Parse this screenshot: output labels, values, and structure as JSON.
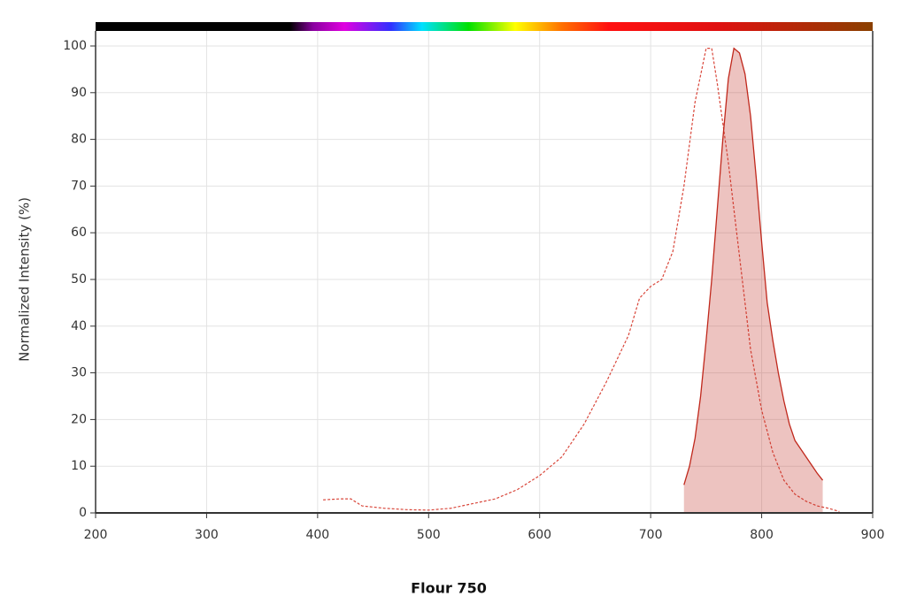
{
  "chart_data": {
    "type": "line",
    "title": "Flour 750",
    "y_label": "Normalized Intensity (%)",
    "xlim": [
      200,
      900
    ],
    "xticks": [
      200,
      300,
      400,
      500,
      600,
      700,
      800,
      900
    ],
    "ylim": [
      0,
      100
    ],
    "yticks": [
      0,
      10,
      20,
      30,
      40,
      50,
      60,
      70,
      80,
      90,
      100
    ],
    "grid": true,
    "series": [
      {
        "color": "#d9473b",
        "style": "dashed",
        "fill": false,
        "x": [
          405,
          420,
          430,
          440,
          460,
          480,
          500,
          520,
          540,
          560,
          580,
          600,
          620,
          640,
          660,
          680,
          690,
          700,
          710,
          720,
          730,
          740,
          750,
          755,
          760,
          770,
          780,
          790,
          800,
          810,
          820,
          830,
          840,
          850,
          860,
          870
        ],
        "values": [
          2.8,
          3,
          3,
          1.5,
          1,
          0.7,
          0.6,
          1,
          2,
          3,
          5,
          8,
          12,
          19,
          28,
          38,
          46,
          48.5,
          50,
          56,
          70,
          88,
          99.5,
          99.5,
          92,
          75,
          55,
          35,
          22,
          13,
          7,
          4,
          2.5,
          1.5,
          1,
          0.3
        ]
      },
      {
        "color": "#c0281c",
        "style": "solid",
        "fill": true,
        "x": [
          730,
          735,
          740,
          745,
          750,
          755,
          760,
          765,
          770,
          775,
          780,
          785,
          790,
          795,
          800,
          805,
          810,
          815,
          820,
          825,
          830,
          840,
          850,
          855
        ],
        "values": [
          6,
          10,
          16,
          25,
          37,
          50,
          65,
          80,
          93,
          99.5,
          98.5,
          94,
          85,
          72,
          58,
          45,
          37,
          30,
          24,
          19,
          15.5,
          12,
          8.5,
          7
        ]
      }
    ]
  }
}
